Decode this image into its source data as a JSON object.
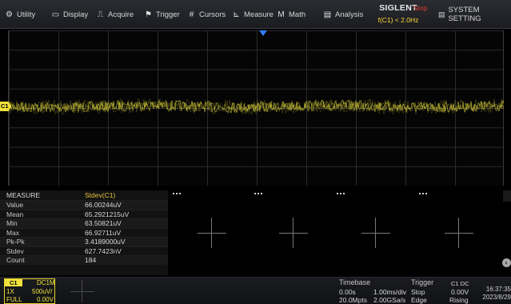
{
  "menubar": {
    "items": [
      {
        "label": "Utility",
        "icon": "utility-icon"
      },
      {
        "label": "Display",
        "icon": "display-icon"
      },
      {
        "label": "Acquire",
        "icon": "acquire-icon"
      },
      {
        "label": "Trigger",
        "icon": "trigger-flag-icon"
      },
      {
        "label": "Cursors",
        "icon": "cursors-icon"
      },
      {
        "label": "Measure",
        "icon": "measure-icon"
      },
      {
        "label": "Math",
        "icon": "math-icon"
      },
      {
        "label": "Analysis",
        "icon": "analysis-icon"
      }
    ],
    "brand": "SIGLENT",
    "run_state": "Stop",
    "frequency": "f(C1) < 2.0Hz",
    "system_settings": "SYSTEM SETTING"
  },
  "waveform": {
    "channel_marker": "C1",
    "trace_color": "#d8cf3a"
  },
  "measure": {
    "title": "MEASURE",
    "source": "Stdev(C1)",
    "rows": [
      {
        "label": "Value",
        "value": "66.00244uV"
      },
      {
        "label": "Mean",
        "value": "65.2921215uV"
      },
      {
        "label": "Min",
        "value": "63.50821uV"
      },
      {
        "label": "Max",
        "value": "66.92711uV"
      },
      {
        "label": "Pk-Pk",
        "value": "3.4189000uV"
      },
      {
        "label": "Stdev",
        "value": "627.7423nV"
      },
      {
        "label": "Count",
        "value": "184"
      }
    ]
  },
  "channel": {
    "name": "C1",
    "coupling": "DC1M",
    "probe": "1X",
    "scale": "500uV/",
    "bandwidth": "FULL",
    "offset": "0.00V"
  },
  "timebase": {
    "title": "Timebase",
    "delay": "0.00s",
    "scale": "1.00ms/div",
    "memory": "20.0Mpts",
    "sample_rate": "2.00GSa/s"
  },
  "trigger": {
    "title": "Trigger",
    "source": "C1 DC",
    "mode": "Stop",
    "level": "0.00V",
    "type": "Edge",
    "slope": "Rising"
  },
  "clock": {
    "time": "16:37:35",
    "date": "2023/8/29"
  }
}
